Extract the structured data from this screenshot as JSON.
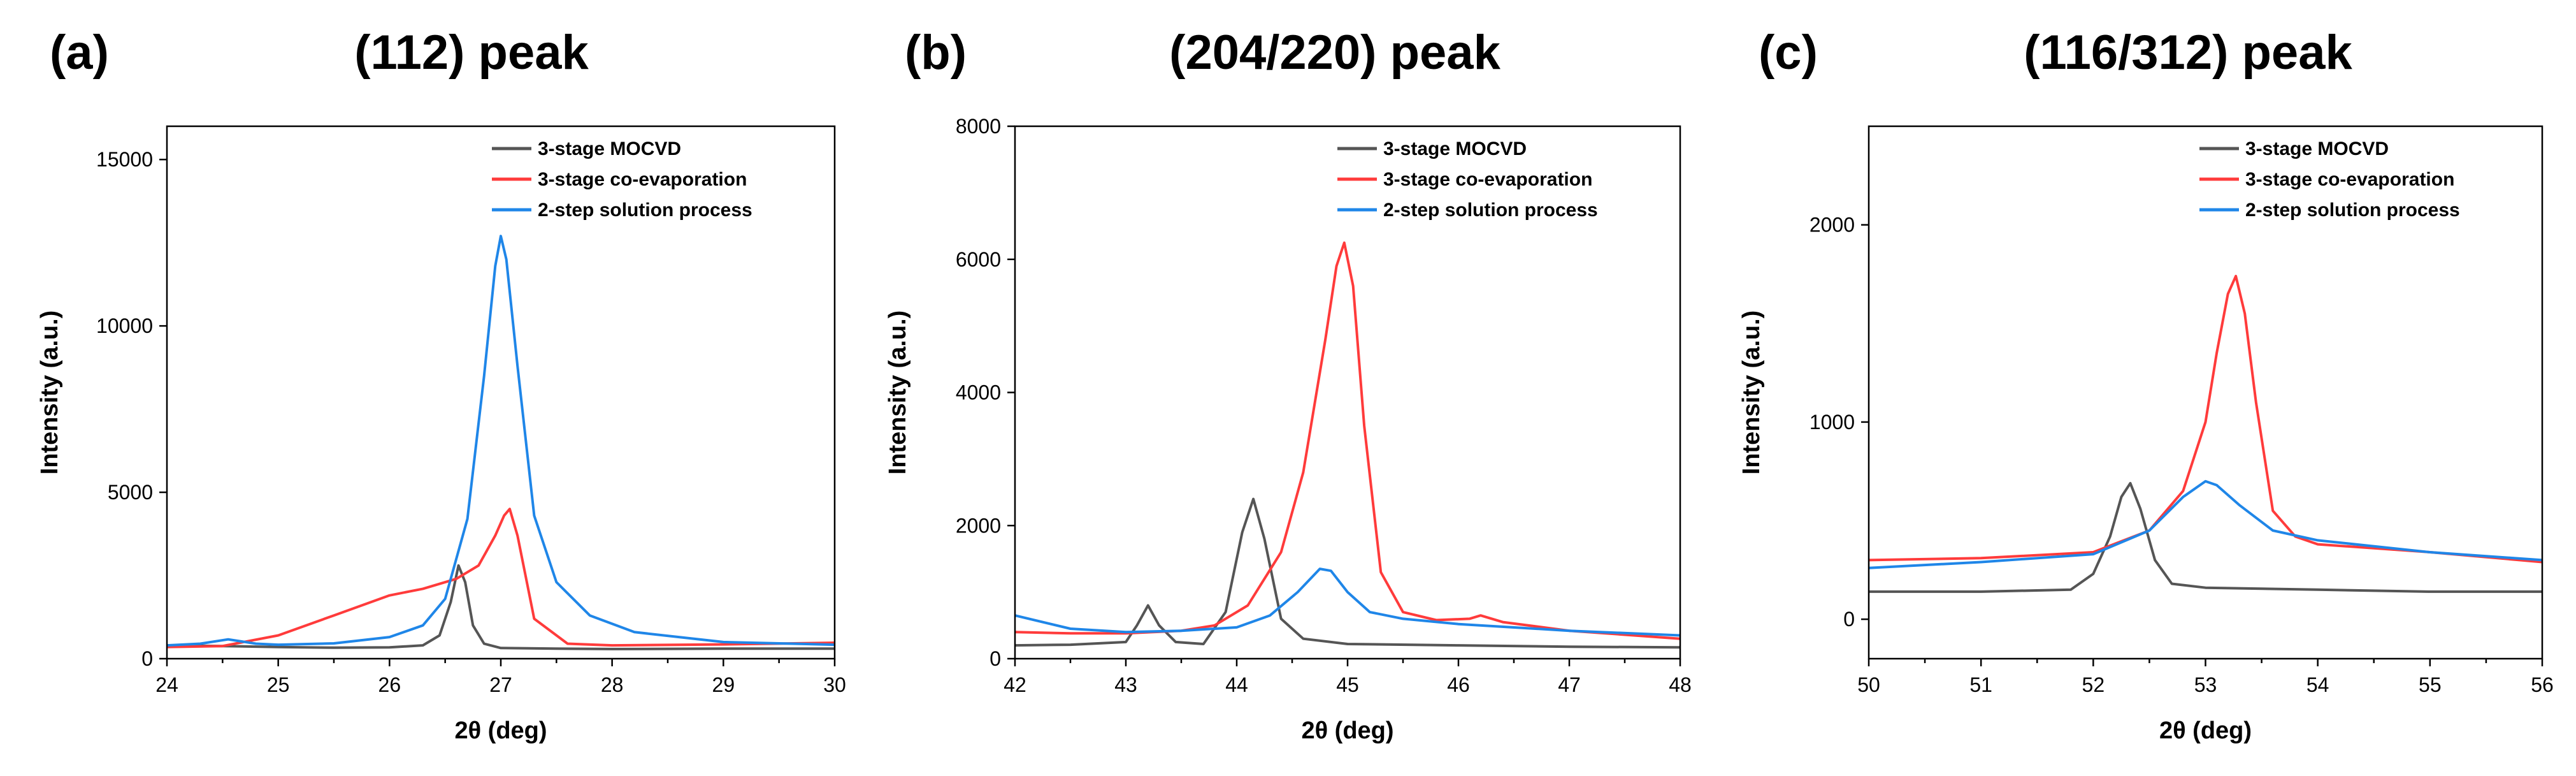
{
  "colors": {
    "mocvd": "#555555",
    "coevap": "#ff3b3b",
    "solution": "#1f86e8"
  },
  "chart_data": [
    {
      "type": "line",
      "panel_label": "(a)",
      "title": "(112) peak",
      "xlabel": "2θ (deg)",
      "ylabel": "Intensity (a.u.)",
      "xlim": [
        24,
        30
      ],
      "ylim": [
        0,
        16000
      ],
      "xticks": [
        24,
        25,
        26,
        27,
        28,
        29,
        30
      ],
      "xtick_labels": [
        "24",
        "25",
        "26",
        "27",
        "28",
        "29",
        "30"
      ],
      "yticks": [
        0,
        5000,
        10000,
        15000
      ],
      "ytick_labels": [
        "0",
        "5000",
        "10000",
        "15000"
      ],
      "legend_position": "top-right",
      "series": [
        {
          "name": "3-stage MOCVD",
          "color_key": "mocvd",
          "x": [
            24,
            24.5,
            25,
            25.5,
            26,
            26.3,
            26.45,
            26.55,
            26.62,
            26.68,
            26.75,
            26.85,
            27,
            27.5,
            28,
            29,
            30
          ],
          "y": [
            400,
            380,
            350,
            330,
            340,
            400,
            700,
            1700,
            2800,
            2300,
            1000,
            450,
            320,
            300,
            290,
            300,
            300
          ]
        },
        {
          "name": "3-stage co-evaporation",
          "color_key": "coevap",
          "x": [
            24,
            24.5,
            25,
            25.5,
            26,
            26.3,
            26.6,
            26.8,
            26.95,
            27.03,
            27.08,
            27.15,
            27.3,
            27.6,
            28,
            29,
            30
          ],
          "y": [
            350,
            380,
            700,
            1300,
            1900,
            2100,
            2400,
            2800,
            3700,
            4300,
            4500,
            3700,
            1200,
            450,
            400,
            430,
            480
          ]
        },
        {
          "name": "2-step solution process",
          "color_key": "solution",
          "x": [
            24,
            24.3,
            24.55,
            24.8,
            25,
            25.5,
            26,
            26.3,
            26.5,
            26.7,
            26.85,
            26.95,
            27.0,
            27.05,
            27.15,
            27.3,
            27.5,
            27.8,
            28.2,
            29,
            30
          ],
          "y": [
            400,
            450,
            580,
            450,
            420,
            460,
            650,
            1000,
            1800,
            4200,
            8500,
            11800,
            12700,
            12000,
            8800,
            4300,
            2300,
            1300,
            800,
            500,
            420
          ]
        }
      ]
    },
    {
      "type": "line",
      "panel_label": "(b)",
      "title": "(204/220) peak",
      "xlabel": "2θ (deg)",
      "ylabel": "Intensity (a.u.)",
      "xlim": [
        42,
        48
      ],
      "ylim": [
        0,
        8000
      ],
      "xticks": [
        42,
        43,
        44,
        45,
        46,
        47,
        48
      ],
      "xtick_labels": [
        "42",
        "43",
        "44",
        "45",
        "46",
        "47",
        "48"
      ],
      "yticks": [
        0,
        2000,
        4000,
        6000,
        8000
      ],
      "ytick_labels": [
        "0",
        "2000",
        "4000",
        "6000",
        "8000"
      ],
      "legend_position": "top-right",
      "series": [
        {
          "name": "3-stage MOCVD",
          "color_key": "mocvd",
          "x": [
            42,
            42.5,
            43,
            43.1,
            43.2,
            43.3,
            43.45,
            43.7,
            43.9,
            44.05,
            44.15,
            44.25,
            44.4,
            44.6,
            45,
            46,
            47,
            48
          ],
          "y": [
            200,
            210,
            250,
            500,
            800,
            500,
            250,
            220,
            700,
            1900,
            2400,
            1800,
            600,
            300,
            220,
            200,
            180,
            170
          ]
        },
        {
          "name": "3-stage co-evaporation",
          "color_key": "coevap",
          "x": [
            42,
            42.5,
            43,
            43.5,
            43.8,
            44.1,
            44.4,
            44.6,
            44.8,
            44.9,
            44.97,
            45.05,
            45.15,
            45.3,
            45.5,
            45.8,
            46.1,
            46.2,
            46.4,
            47,
            48
          ],
          "y": [
            400,
            380,
            380,
            420,
            500,
            800,
            1600,
            2800,
            4800,
            5900,
            6250,
            5600,
            3500,
            1300,
            700,
            580,
            600,
            650,
            550,
            420,
            300
          ]
        },
        {
          "name": "2-step solution process",
          "color_key": "solution",
          "x": [
            42,
            42.5,
            43,
            43.5,
            44,
            44.3,
            44.55,
            44.75,
            44.85,
            45,
            45.2,
            45.5,
            46,
            47,
            48
          ],
          "y": [
            650,
            450,
            400,
            420,
            470,
            650,
            1000,
            1350,
            1320,
            1000,
            700,
            600,
            520,
            420,
            350
          ]
        }
      ]
    },
    {
      "type": "line",
      "panel_label": "(c)",
      "title": "(116/312) peak",
      "xlabel": "2θ (deg)",
      "ylabel": "Intensity (a.u.)",
      "xlim": [
        50,
        56
      ],
      "ylim": [
        -200,
        2500
      ],
      "xticks": [
        50,
        51,
        52,
        53,
        54,
        55,
        56
      ],
      "xtick_labels": [
        "50",
        "51",
        "52",
        "53",
        "54",
        "55",
        "56"
      ],
      "yticks": [
        0,
        1000,
        2000
      ],
      "ytick_labels": [
        "0",
        "1000",
        "2000"
      ],
      "legend_position": "top-right",
      "series": [
        {
          "name": "3-stage MOCVD",
          "color_key": "mocvd",
          "x": [
            50,
            51,
            51.8,
            52,
            52.15,
            52.25,
            52.33,
            52.42,
            52.55,
            52.7,
            53,
            54,
            55,
            56
          ],
          "y": [
            140,
            140,
            150,
            230,
            420,
            620,
            690,
            560,
            300,
            180,
            160,
            150,
            140,
            140
          ]
        },
        {
          "name": "3-stage co-evaporation",
          "color_key": "coevap",
          "x": [
            50,
            51,
            52,
            52.5,
            52.8,
            53.0,
            53.1,
            53.2,
            53.27,
            53.35,
            53.45,
            53.6,
            53.8,
            54,
            55,
            56
          ],
          "y": [
            300,
            310,
            340,
            450,
            650,
            1000,
            1350,
            1650,
            1740,
            1550,
            1100,
            550,
            420,
            380,
            340,
            290
          ]
        },
        {
          "name": "2-step solution process",
          "color_key": "solution",
          "x": [
            50,
            51,
            52,
            52.5,
            52.8,
            53.0,
            53.1,
            53.3,
            53.6,
            54,
            55,
            56
          ],
          "y": [
            260,
            290,
            330,
            450,
            620,
            700,
            680,
            580,
            450,
            400,
            340,
            300
          ]
        }
      ]
    }
  ]
}
